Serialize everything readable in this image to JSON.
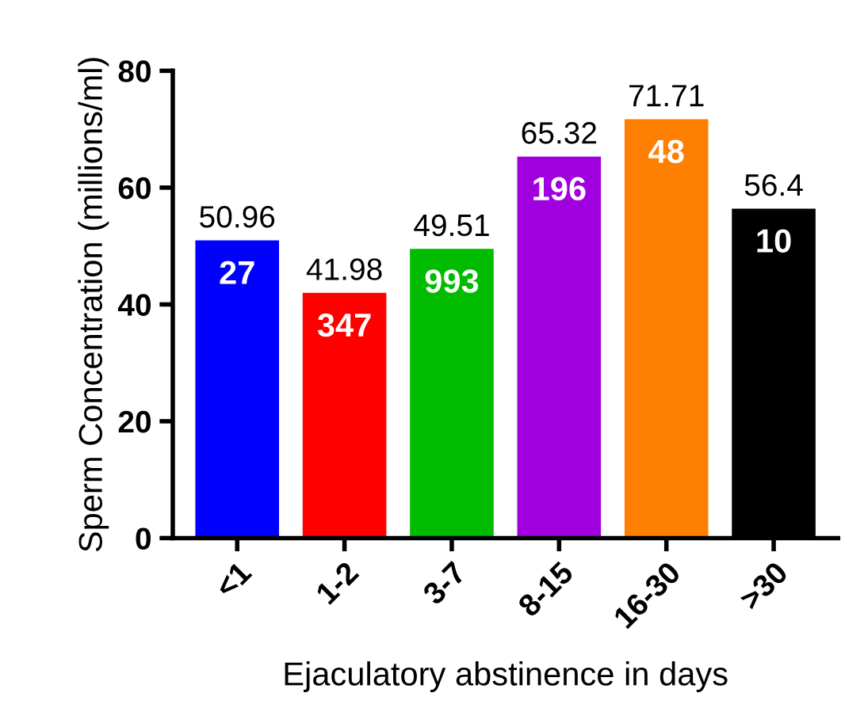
{
  "chart_data": {
    "type": "bar",
    "xlabel": "Ejaculatory abstinence in days",
    "ylabel": "Sperm Concentration (millions/ml)",
    "categories": [
      "<1",
      "1-2",
      "3-7",
      "8-15",
      "16-30",
      ">30"
    ],
    "values": [
      50.96,
      41.98,
      49.51,
      65.32,
      71.71,
      56.4
    ],
    "colors": [
      "#0000ff",
      "#ff0000",
      "#00bb00",
      "#a000e0",
      "#ff8000",
      "#000000"
    ],
    "data_labels": true,
    "annotations": [
      "27",
      "347",
      "993",
      "196",
      "48",
      "10"
    ],
    "ylim": [
      0,
      80
    ],
    "yticks": [
      0,
      20,
      40,
      60,
      80
    ],
    "grid": false,
    "legend": false
  }
}
